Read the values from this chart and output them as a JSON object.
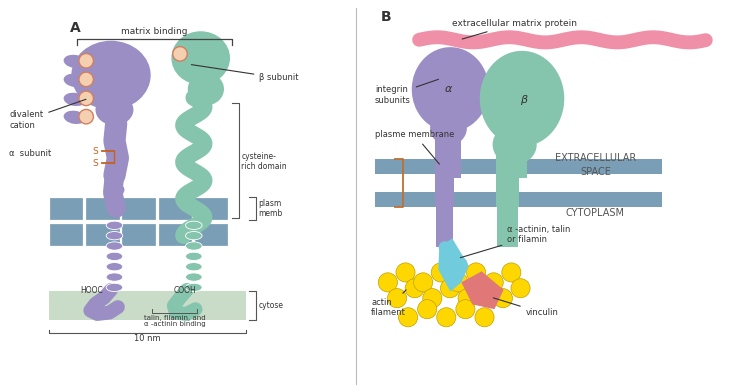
{
  "alpha_color": "#9B8EC4",
  "beta_color": "#85C4AD",
  "membrane_color": "#7A9EB5",
  "cytoplasm_bg": "#C8DCC8",
  "pink_color": "#F090A8",
  "orange_ss_color": "#C86020",
  "yellow_color": "#FFD700",
  "blue_protein_color": "#70CCDD",
  "red_protein_color": "#E07878",
  "divalent_color": "#F5D0B0",
  "background": "#FFFFFF",
  "text_color": "#333333",
  "label_A": "A",
  "label_B": "B",
  "label_matrix_binding": "matrix binding",
  "label_beta_subunit": "β subunit",
  "label_divalent_cation": "divalent\ncation",
  "label_alpha_subunit": "α  subunit",
  "label_cysteine": "cysteine-\nrich domain",
  "label_plasm_memb": "plasm\nmemb",
  "label_hooc": "HOOC",
  "label_cooh": "COOH",
  "label_cytose": "cytose",
  "label_talin1": "talin, filamin, and",
  "label_talin2": "α -actinin binding",
  "label_10nm": "10 nm",
  "label_ecm": "extracellular matrix protein",
  "label_integrin_subunits": "integrin\nsubunits",
  "label_alpha": "α",
  "label_beta": "β",
  "label_plasme_membrane": "plasme membrane",
  "label_extracellular_space": "EXTRACELLULAR\nSPACE",
  "label_cytoplasm": "CYTOPLASM",
  "label_alpha_actinin": "α -actinin, talin\nor filamin",
  "label_actin_filament": "actin\nfilament",
  "label_vinculin": "vinculin"
}
